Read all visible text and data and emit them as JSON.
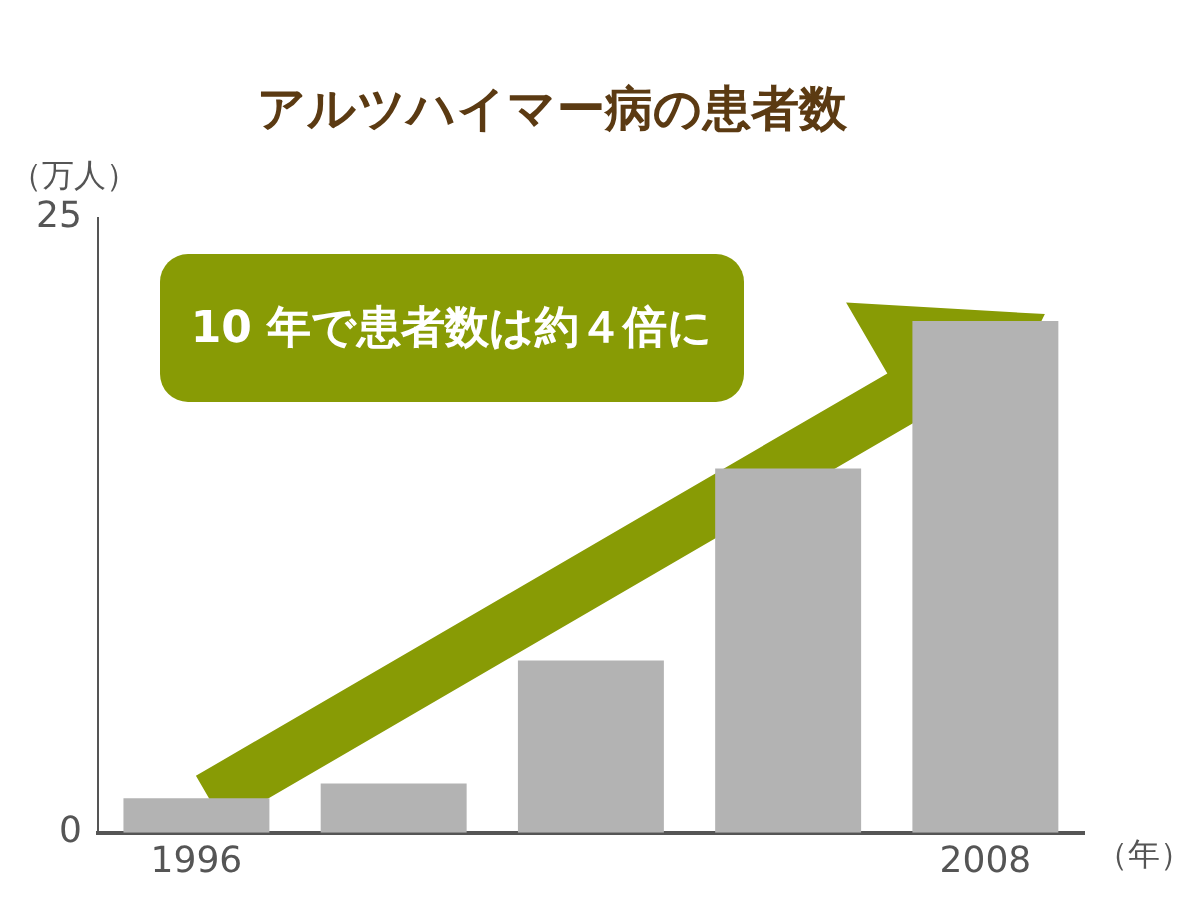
{
  "chart_data": {
    "type": "bar",
    "title": "アルツハイマー病の患者数",
    "categories": [
      "1996",
      null,
      null,
      null,
      "2008"
    ],
    "values": [
      1.4,
      2.0,
      7.0,
      14.8,
      20.8
    ],
    "color": "#b3b3b3",
    "ylim": [
      0,
      25
    ],
    "yticks": [
      0,
      25
    ],
    "grid": false,
    "legend": false,
    "xlabel": "（年）",
    "ylabel": "（万人）",
    "annotations": [
      "10 年で患者数は約４倍に"
    ]
  }
}
